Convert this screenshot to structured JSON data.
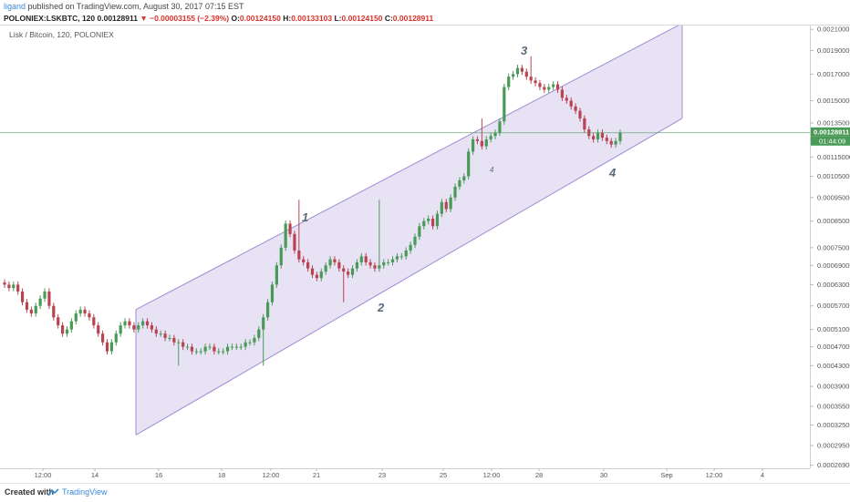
{
  "header": {
    "username": "ligand",
    "published_text": "published on TradingView.com, August 30, 2017 07:15 EST",
    "symbol": "POLONIEX:LSKBTC, 120",
    "last": "0.00128911",
    "change": "▼ −0.00003155 (−2.39%)",
    "o_label": "O:",
    "o_value": "0.00124150",
    "h_label": "H:",
    "h_value": "0.00133103",
    "l_label": "L:",
    "l_value": "0.00124150",
    "c_label": "C:",
    "c_value": "0.00128911"
  },
  "chart_title": "Lisk / Bitcoin, 120, POLONIEX",
  "footer": {
    "created_with": "Created with",
    "brand": "TradingView"
  },
  "chart_data": {
    "type": "candlestick",
    "y_scale": "log",
    "ylim": [
      0.000265,
      0.00212
    ],
    "y_ticks": [
      "0.00210000",
      "0.00190000",
      "0.00170000",
      "0.00150000",
      "0.00135000",
      "0.00125000",
      "0.00115000",
      "0.00105000",
      "0.00095000",
      "0.00085000",
      "0.00075000",
      "0.00069000",
      "0.00063000",
      "0.00057000",
      "0.00051000",
      "0.00047000",
      "0.00043000",
      "0.00039000",
      "0.00035500",
      "0.00032500",
      "0.00029500",
      "0.00026900"
    ],
    "x_ticks": [
      "12:00",
      "14",
      "16",
      "18",
      "12:00",
      "21",
      "23",
      "25",
      "12:00",
      "28",
      "30",
      "Sep",
      "12:00",
      "4"
    ],
    "current_price": "0.00128911",
    "countdown": "01:44:09",
    "up_color": "#4a9a57",
    "down_color": "#b94451",
    "channel_color": "#9f8cd2",
    "channel_fill": "#e4ddf3",
    "channel": {
      "start_date": "Aug 15 12:00",
      "end_date": "Sep 1",
      "upper": [
        0.00056,
        0.00216
      ],
      "lower": [
        0.00031,
        0.00138
      ]
    },
    "wave_labels": [
      "1",
      "2",
      "3",
      "4",
      "4"
    ],
    "closes": [
      0.00063,
      0.00062,
      0.00063,
      0.00061,
      0.00058,
      0.00056,
      0.00055,
      0.00057,
      0.00059,
      0.00061,
      0.00057,
      0.00054,
      0.00052,
      0.0005,
      0.00051,
      0.00053,
      0.00055,
      0.00056,
      0.00055,
      0.00054,
      0.00052,
      0.0005,
      0.00048,
      0.00046,
      0.00048,
      0.0005,
      0.00052,
      0.00053,
      0.00052,
      0.00051,
      0.00052,
      0.00053,
      0.00052,
      0.00051,
      0.0005,
      0.0005,
      0.00049,
      0.00049,
      0.00048,
      0.00048,
      0.00047,
      0.00047,
      0.00046,
      0.00046,
      0.00046,
      0.00047,
      0.00047,
      0.00046,
      0.00046,
      0.00046,
      0.00047,
      0.00047,
      0.00047,
      0.00047,
      0.00048,
      0.00048,
      0.00049,
      0.00051,
      0.00054,
      0.00058,
      0.00063,
      0.00069,
      0.00075,
      0.00084,
      0.0008,
      0.00074,
      0.00071,
      0.0007,
      0.00068,
      0.00066,
      0.00065,
      0.00067,
      0.00069,
      0.00071,
      0.0007,
      0.00068,
      0.00067,
      0.00066,
      0.00068,
      0.0007,
      0.00072,
      0.0007,
      0.00069,
      0.00068,
      0.00069,
      0.0007,
      0.0007,
      0.00071,
      0.00072,
      0.00072,
      0.00074,
      0.00076,
      0.00079,
      0.00083,
      0.00085,
      0.00086,
      0.00083,
      0.00088,
      0.00093,
      0.0009,
      0.00095,
      0.001,
      0.00103,
      0.00105,
      0.00118,
      0.00125,
      0.00124,
      0.00121,
      0.00125,
      0.00127,
      0.00129,
      0.00136,
      0.0016,
      0.00168,
      0.0017,
      0.00175,
      0.00172,
      0.00168,
      0.00165,
      0.00163,
      0.0016,
      0.00158,
      0.0016,
      0.00162,
      0.00158,
      0.00152,
      0.0015,
      0.00146,
      0.00143,
      0.00138,
      0.00131,
      0.00127,
      0.00125,
      0.00129,
      0.00126,
      0.00124,
      0.00122,
      0.00124,
      0.00129
    ]
  }
}
